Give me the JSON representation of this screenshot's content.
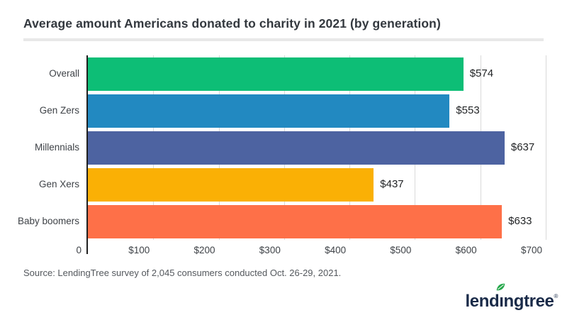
{
  "title": "Average amount Americans donated to charity in 2021 (by generation)",
  "source": "Source: LendingTree survey of 2,045 consumers conducted Oct. 26-29, 2021.",
  "logo": {
    "text_pre": "lend",
    "text_i": "ı",
    "text_post": "ngtree",
    "registered": "®",
    "navy": "#1a2b49",
    "leaf_green": "#27a84c"
  },
  "chart_data": {
    "type": "bar",
    "orientation": "horizontal",
    "title": "Average amount Americans donated to charity in 2021 (by generation)",
    "categories": [
      "Overall",
      "Gen Zers",
      "Millennials",
      "Gen Xers",
      "Baby boomers"
    ],
    "values": [
      574,
      553,
      637,
      437,
      633
    ],
    "value_labels": [
      "$574",
      "$553",
      "$637",
      "$437",
      "$633"
    ],
    "bar_colors": [
      "#0dbe76",
      "#2289c1",
      "#4d63a1",
      "#fab005",
      "#fe7048"
    ],
    "xlim": [
      0,
      700
    ],
    "x_ticks": [
      0,
      100,
      200,
      300,
      400,
      500,
      600,
      700
    ],
    "x_tick_labels": [
      "0",
      "$100",
      "$200",
      "$300",
      "$400",
      "$500",
      "$600",
      "$700"
    ],
    "grid": "vertical",
    "legend": "none",
    "axis_color": "#1f1f1f",
    "gridline_color": "#d9d9d9"
  }
}
